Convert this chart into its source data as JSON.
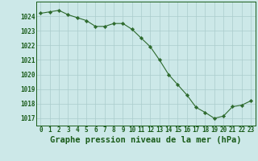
{
  "x": [
    0,
    1,
    2,
    3,
    4,
    5,
    6,
    7,
    8,
    9,
    10,
    11,
    12,
    13,
    14,
    15,
    16,
    17,
    18,
    19,
    20,
    21,
    22,
    23
  ],
  "y": [
    1024.2,
    1024.3,
    1024.4,
    1024.1,
    1023.9,
    1023.7,
    1023.3,
    1023.3,
    1023.5,
    1023.5,
    1023.1,
    1022.5,
    1021.9,
    1021.0,
    1020.0,
    1019.3,
    1018.6,
    1017.75,
    1017.4,
    1017.0,
    1017.15,
    1017.8,
    1017.9,
    1018.2
  ],
  "line_color": "#2d6a2d",
  "marker_color": "#2d6a2d",
  "bg_color": "#cce8e8",
  "grid_color": "#aacccc",
  "axis_label_color": "#1a5c1a",
  "xlabel": "Graphe pression niveau de la mer (hPa)",
  "ylim_min": 1016.5,
  "ylim_max": 1025.0,
  "xlim_min": -0.5,
  "xlim_max": 23.5,
  "yticks": [
    1017,
    1018,
    1019,
    1020,
    1021,
    1022,
    1023,
    1024
  ],
  "xticks": [
    0,
    1,
    2,
    3,
    4,
    5,
    6,
    7,
    8,
    9,
    10,
    11,
    12,
    13,
    14,
    15,
    16,
    17,
    18,
    19,
    20,
    21,
    22,
    23
  ],
  "tick_fontsize": 5.5,
  "xlabel_fontsize": 7.5
}
